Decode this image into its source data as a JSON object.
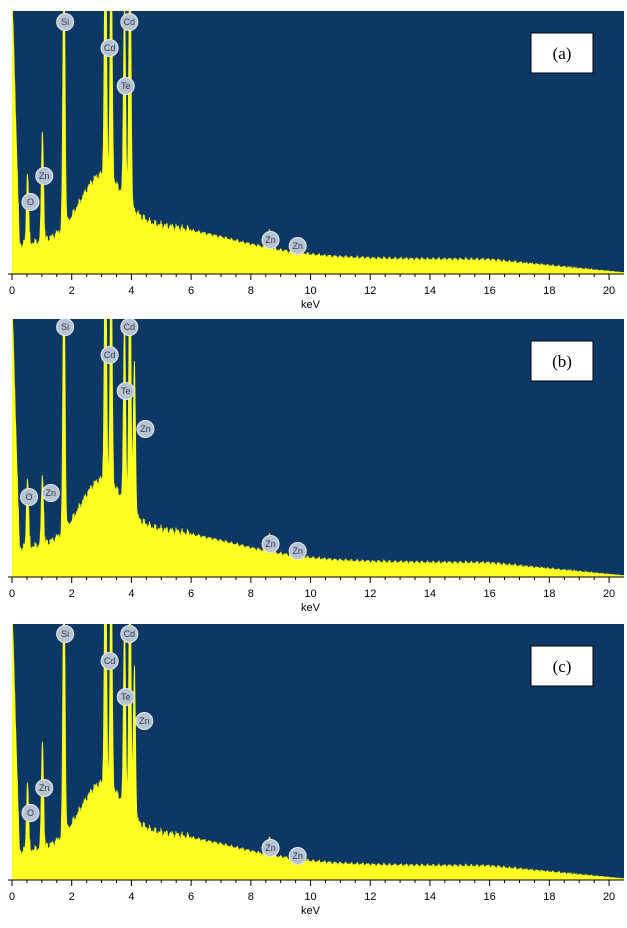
{
  "chart_data": [
    {
      "type": "area",
      "panel_label": "(a)",
      "xlabel": "keV",
      "xlim": [
        0,
        20.5
      ],
      "x_ticks": [
        "0",
        "2",
        "4",
        "6",
        "8",
        "10",
        "12",
        "14",
        "16",
        "18",
        "20"
      ],
      "background_color": "#0d3866",
      "fill_color": "#ffff22",
      "peaks": [
        {
          "label": "O",
          "x": 0.52,
          "height": 0.28
        },
        {
          "label": "Zn",
          "x": 1.02,
          "height": 0.43
        },
        {
          "label": "Si",
          "x": 1.74,
          "height": 1.05
        },
        {
          "label": "Cd",
          "x": 3.13,
          "height": 1.05
        },
        {
          "label": "Cd",
          "x": 3.32,
          "height": 0.9
        },
        {
          "label": "Te",
          "x": 3.77,
          "height": 0.75
        },
        {
          "label": "Cd",
          "x": 3.95,
          "height": 1.05
        },
        {
          "label": "Zn",
          "x": 8.63,
          "height": 0.07
        },
        {
          "label": "Zn",
          "x": 9.57,
          "height": 0.035
        }
      ],
      "markers": [
        {
          "label": "O",
          "x": 0.62
        },
        {
          "label": "Zn",
          "x": 1.08
        },
        {
          "label": "Si",
          "x": 1.78
        },
        {
          "label": "Cd",
          "x": 3.27
        },
        {
          "label": "Cd",
          "x": 3.93
        },
        {
          "label": "Te",
          "x": 3.81
        },
        {
          "label": "Zn",
          "x": 8.66
        },
        {
          "label": "Zn",
          "x": 9.57
        }
      ]
    },
    {
      "type": "area",
      "panel_label": "(b)",
      "xlabel": "keV",
      "xlim": [
        0,
        20.5
      ],
      "x_ticks": [
        "0",
        "2",
        "4",
        "6",
        "8",
        "10",
        "12",
        "14",
        "16",
        "18",
        "20"
      ],
      "background_color": "#0d3866",
      "fill_color": "#ffff22",
      "peaks": [
        {
          "label": "O",
          "x": 0.52,
          "height": 0.28
        },
        {
          "label": "Zn",
          "x": 1.02,
          "height": 0.28
        },
        {
          "label": "Si",
          "x": 1.74,
          "height": 1.05
        },
        {
          "label": "Cd",
          "x": 3.13,
          "height": 1.05
        },
        {
          "label": "Cd",
          "x": 3.32,
          "height": 0.9
        },
        {
          "label": "Te",
          "x": 3.77,
          "height": 0.72
        },
        {
          "label": "Cd",
          "x": 3.95,
          "height": 1.05
        },
        {
          "label": "Zn",
          "x": 4.1,
          "height": 0.6
        },
        {
          "label": "Zn",
          "x": 8.63,
          "height": 0.07
        },
        {
          "label": "Zn",
          "x": 9.57,
          "height": 0.035
        }
      ],
      "markers": [
        {
          "label": "O",
          "x": 0.57
        },
        {
          "label": "Zn",
          "x": 1.3
        },
        {
          "label": "Si",
          "x": 1.78
        },
        {
          "label": "Cd",
          "x": 3.27
        },
        {
          "label": "Cd",
          "x": 3.93
        },
        {
          "label": "Te",
          "x": 3.81
        },
        {
          "label": "Zn",
          "x": 4.47
        },
        {
          "label": "Zn",
          "x": 8.66
        },
        {
          "label": "Zn",
          "x": 9.57
        }
      ]
    },
    {
      "type": "area",
      "panel_label": "(c)",
      "xlabel": "keV",
      "xlim": [
        0,
        20.5
      ],
      "x_ticks": [
        "0",
        "2",
        "4",
        "6",
        "8",
        "10",
        "12",
        "14",
        "16",
        "18",
        "20"
      ],
      "background_color": "#0d3866",
      "fill_color": "#ffff22",
      "peaks": [
        {
          "label": "O",
          "x": 0.52,
          "height": 0.28
        },
        {
          "label": "Zn",
          "x": 1.02,
          "height": 0.43
        },
        {
          "label": "Si",
          "x": 1.74,
          "height": 1.05
        },
        {
          "label": "Cd",
          "x": 3.13,
          "height": 1.05
        },
        {
          "label": "Cd",
          "x": 3.32,
          "height": 0.9
        },
        {
          "label": "Te",
          "x": 3.77,
          "height": 0.73
        },
        {
          "label": "Cd",
          "x": 3.95,
          "height": 1.05
        },
        {
          "label": "Zn",
          "x": 4.1,
          "height": 0.6
        },
        {
          "label": "Zn",
          "x": 8.63,
          "height": 0.07
        },
        {
          "label": "Zn",
          "x": 9.57,
          "height": 0.035
        }
      ],
      "markers": [
        {
          "label": "O",
          "x": 0.62
        },
        {
          "label": "Zn",
          "x": 1.08
        },
        {
          "label": "Si",
          "x": 1.78
        },
        {
          "label": "Cd",
          "x": 3.27
        },
        {
          "label": "Cd",
          "x": 3.93
        },
        {
          "label": "Te",
          "x": 3.81
        },
        {
          "label": "Zn",
          "x": 4.43
        },
        {
          "label": "Zn",
          "x": 8.66
        },
        {
          "label": "Zn",
          "x": 9.57
        }
      ]
    }
  ]
}
